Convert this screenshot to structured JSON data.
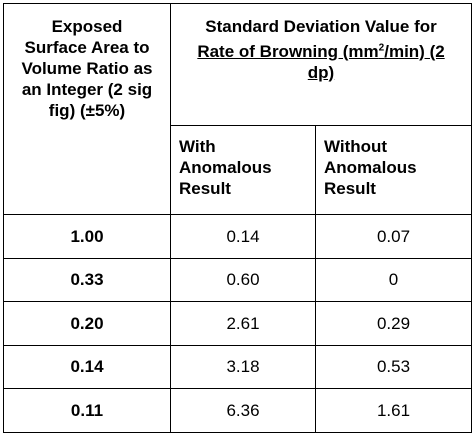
{
  "table": {
    "row_header_lines": [
      "Exposed",
      "Surface Area to",
      "Volume Ratio as",
      "an Integer (2 sig",
      "fig) (±5%)"
    ],
    "group_header_line1": "Standard Deviation Value for",
    "group_header_line2_pre": "Rate of Browning (mm",
    "group_header_sup": "2",
    "group_header_line2_post": "/min) (2",
    "group_header_line3": "dp)",
    "col_with": [
      "With",
      "Anomalous",
      "Result"
    ],
    "col_without": [
      "Without",
      "Anomalous",
      "Result"
    ],
    "rows": [
      {
        "ratio": "1.00",
        "with": "0.14",
        "without": "0.07"
      },
      {
        "ratio": "0.33",
        "with": "0.60",
        "without": "0"
      },
      {
        "ratio": "0.20",
        "with": "2.61",
        "without": "0.29"
      },
      {
        "ratio": "0.14",
        "with": "3.18",
        "without": "0.53"
      },
      {
        "ratio": "0.11",
        "with": "6.36",
        "without": "1.61"
      }
    ]
  }
}
